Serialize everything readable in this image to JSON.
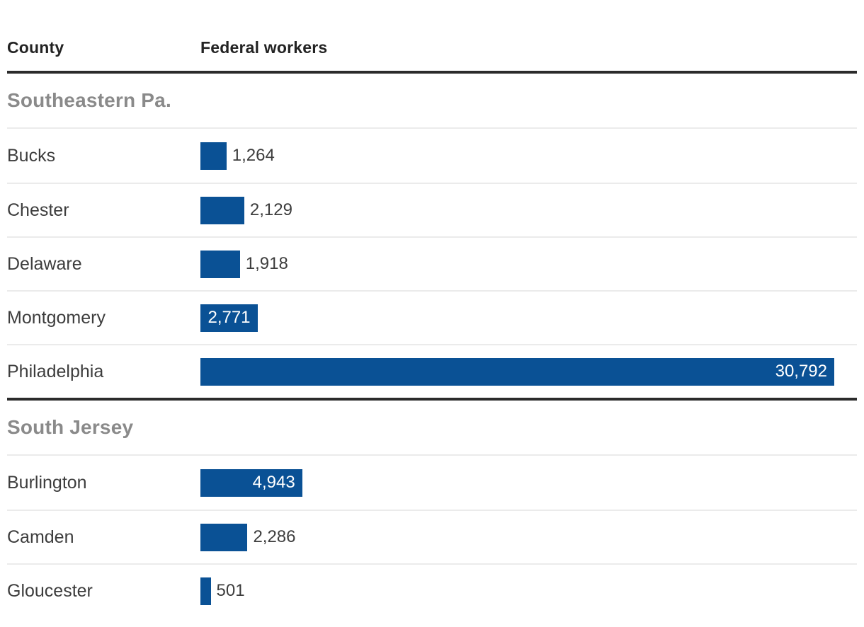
{
  "header": {
    "county": "County",
    "federal_workers": "Federal workers"
  },
  "colors": {
    "bar": "#0a5195",
    "thick_rule": "#2b2b2b",
    "row_divider": "#ebebeb",
    "section_title_text": "#8a8a8a",
    "header_text": "#232323",
    "label_text": "#3d3d3d",
    "inside_label_text": "#ffffff"
  },
  "chart_data": {
    "type": "bar",
    "orientation": "horizontal",
    "columns": [
      "County",
      "Federal workers"
    ],
    "max_value": 30792,
    "value_axis_visible": false,
    "grid": false,
    "legend": false,
    "groups": [
      {
        "label": "Southeastern Pa.",
        "rows": [
          {
            "county": "Bucks",
            "value": 1264,
            "label": "1,264",
            "label_position": "outside"
          },
          {
            "county": "Chester",
            "value": 2129,
            "label": "2,129",
            "label_position": "outside"
          },
          {
            "county": "Delaware",
            "value": 1918,
            "label": "1,918",
            "label_position": "outside"
          },
          {
            "county": "Montgomery",
            "value": 2771,
            "label": "2,771",
            "label_position": "inside"
          },
          {
            "county": "Philadelphia",
            "value": 30792,
            "label": "30,792",
            "label_position": "inside"
          }
        ]
      },
      {
        "label": "South Jersey",
        "rows": [
          {
            "county": "Burlington",
            "value": 4943,
            "label": "4,943",
            "label_position": "inside"
          },
          {
            "county": "Camden",
            "value": 2286,
            "label": "2,286",
            "label_position": "outside"
          },
          {
            "county": "Gloucester",
            "value": 501,
            "label": "501",
            "label_position": "outside"
          }
        ]
      }
    ]
  }
}
